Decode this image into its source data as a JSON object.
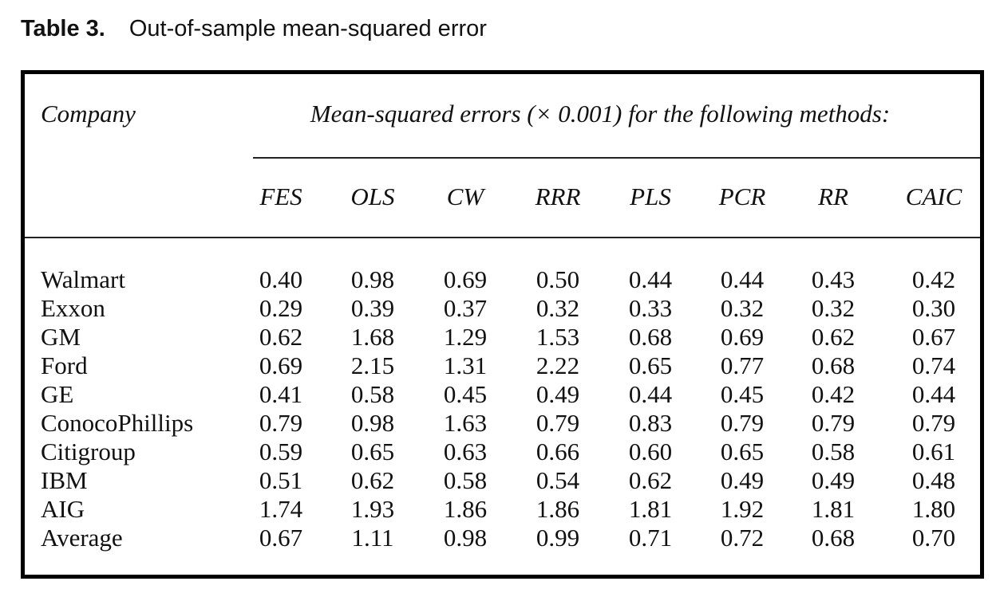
{
  "caption": {
    "label": "Table 3.",
    "title": "Out-of-sample mean-squared error"
  },
  "table": {
    "row_header": "Company",
    "group_header": "Mean-squared errors (× 0.001) for the following methods:",
    "columns": [
      "FES",
      "OLS",
      "CW",
      "RRR",
      "PLS",
      "PCR",
      "RR",
      "CAIC"
    ],
    "rows": [
      {
        "name": "Walmart",
        "values": [
          "0.40",
          "0.98",
          "0.69",
          "0.50",
          "0.44",
          "0.44",
          "0.43",
          "0.42"
        ]
      },
      {
        "name": "Exxon",
        "values": [
          "0.29",
          "0.39",
          "0.37",
          "0.32",
          "0.33",
          "0.32",
          "0.32",
          "0.30"
        ]
      },
      {
        "name": "GM",
        "values": [
          "0.62",
          "1.68",
          "1.29",
          "1.53",
          "0.68",
          "0.69",
          "0.62",
          "0.67"
        ]
      },
      {
        "name": "Ford",
        "values": [
          "0.69",
          "2.15",
          "1.31",
          "2.22",
          "0.65",
          "0.77",
          "0.68",
          "0.74"
        ]
      },
      {
        "name": "GE",
        "values": [
          "0.41",
          "0.58",
          "0.45",
          "0.49",
          "0.44",
          "0.45",
          "0.42",
          "0.44"
        ]
      },
      {
        "name": "ConocoPhillips",
        "values": [
          "0.79",
          "0.98",
          "1.63",
          "0.79",
          "0.83",
          "0.79",
          "0.79",
          "0.79"
        ]
      },
      {
        "name": "Citigroup",
        "values": [
          "0.59",
          "0.65",
          "0.63",
          "0.66",
          "0.60",
          "0.65",
          "0.58",
          "0.61"
        ]
      },
      {
        "name": "IBM",
        "values": [
          "0.51",
          "0.62",
          "0.58",
          "0.54",
          "0.62",
          "0.49",
          "0.49",
          "0.48"
        ]
      },
      {
        "name": "AIG",
        "values": [
          "1.74",
          "1.93",
          "1.86",
          "1.86",
          "1.81",
          "1.92",
          "1.81",
          "1.80"
        ]
      },
      {
        "name": "Average",
        "values": [
          "0.67",
          "1.11",
          "0.98",
          "0.99",
          "0.71",
          "0.72",
          "0.68",
          "0.70"
        ]
      }
    ]
  }
}
